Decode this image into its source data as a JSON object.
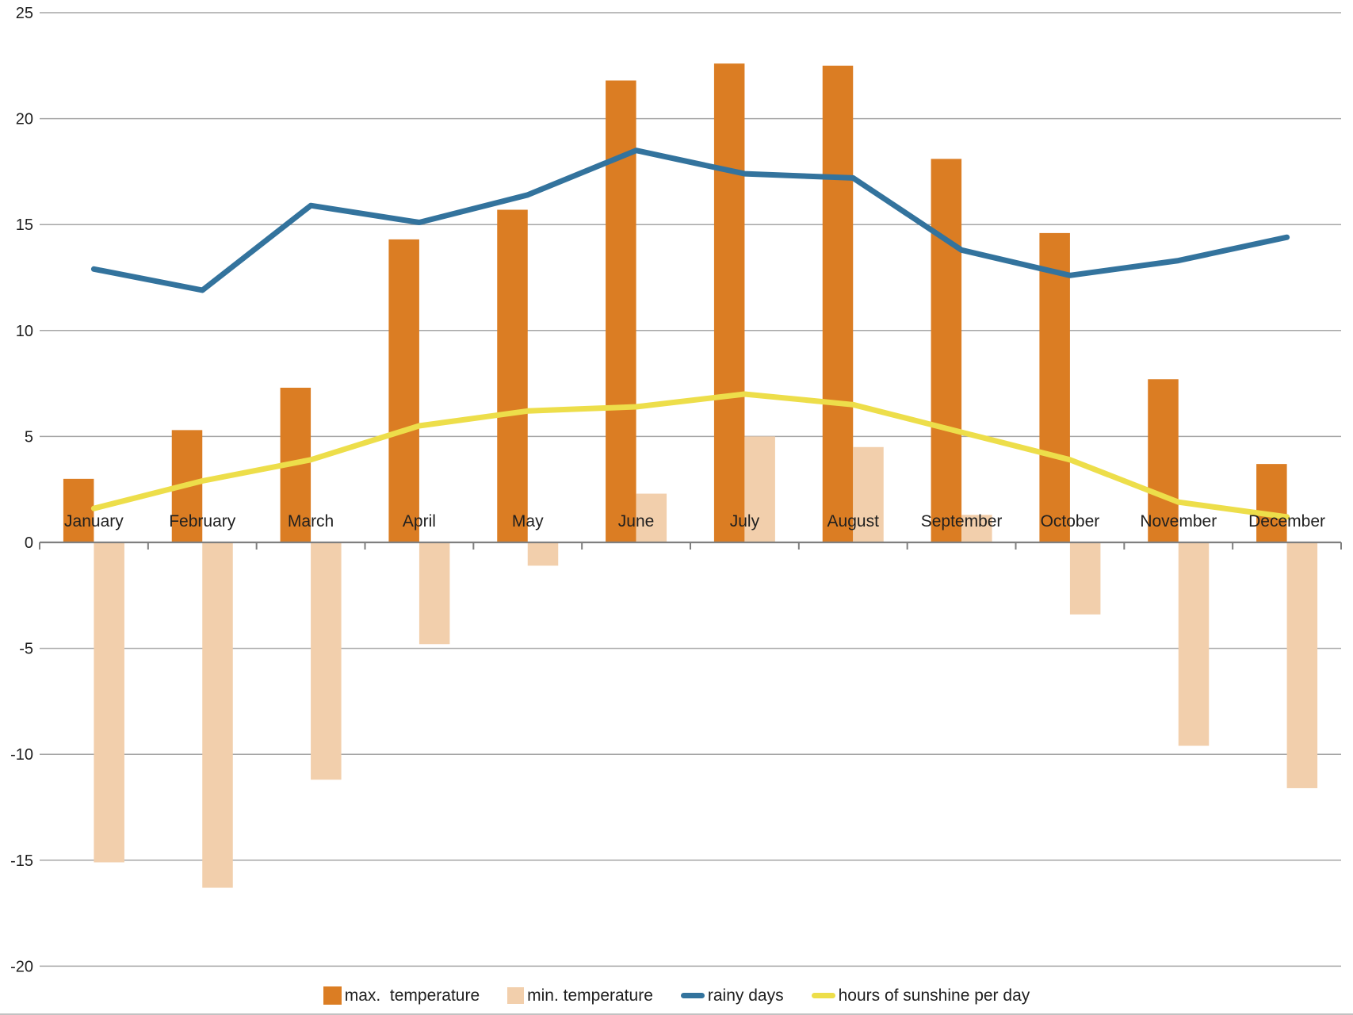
{
  "chart_data": {
    "type": "bar",
    "subtype": "combo-bar-line",
    "title": "",
    "xlabel": "",
    "ylabel": "",
    "categories": [
      "January",
      "February",
      "March",
      "April",
      "May",
      "June",
      "July",
      "August",
      "September",
      "October",
      "November",
      "December"
    ],
    "series": [
      {
        "name": "max.  temperature",
        "kind": "bar",
        "color": "#DB7D23",
        "values": [
          3.0,
          5.3,
          7.3,
          14.3,
          15.7,
          21.8,
          22.6,
          22.5,
          18.1,
          14.6,
          7.7,
          3.7
        ]
      },
      {
        "name": "min. temperature",
        "kind": "bar",
        "color": "#F2CFAC",
        "values": [
          -15.1,
          -16.3,
          -11.2,
          -4.8,
          -1.1,
          2.3,
          5.0,
          4.5,
          1.3,
          -3.4,
          -9.6,
          -11.6
        ]
      },
      {
        "name": "rainy days",
        "kind": "line",
        "color": "#33739D",
        "values": [
          12.9,
          11.9,
          15.9,
          15.1,
          16.4,
          18.5,
          17.4,
          17.2,
          13.8,
          12.6,
          13.3,
          14.4
        ]
      },
      {
        "name": "hours of sunshine per day",
        "kind": "line",
        "color": "#EDDE4A",
        "values": [
          1.6,
          2.9,
          3.9,
          5.5,
          6.2,
          6.4,
          7.0,
          6.5,
          5.2,
          3.9,
          1.9,
          1.2
        ]
      }
    ],
    "ylim": [
      -20,
      25
    ],
    "ytick_step": 5,
    "ytick_labels": [
      "25",
      "20",
      "15",
      "10",
      "5",
      "0",
      "-5",
      "-10",
      "-15",
      "-20"
    ],
    "grid": true,
    "legend_position": "bottom"
  },
  "style": {
    "background": "#ffffff",
    "gridline_color": "#A6A6A6",
    "axis_line_color": "#7F7F7F",
    "text_color": "#1f1f1f",
    "bottom_border_color": "#9A9A9A"
  },
  "legend": {
    "items": [
      {
        "label": "max.  temperature"
      },
      {
        "label": "min. temperature"
      },
      {
        "label": "rainy days"
      },
      {
        "label": "hours of sunshine per day"
      }
    ]
  }
}
